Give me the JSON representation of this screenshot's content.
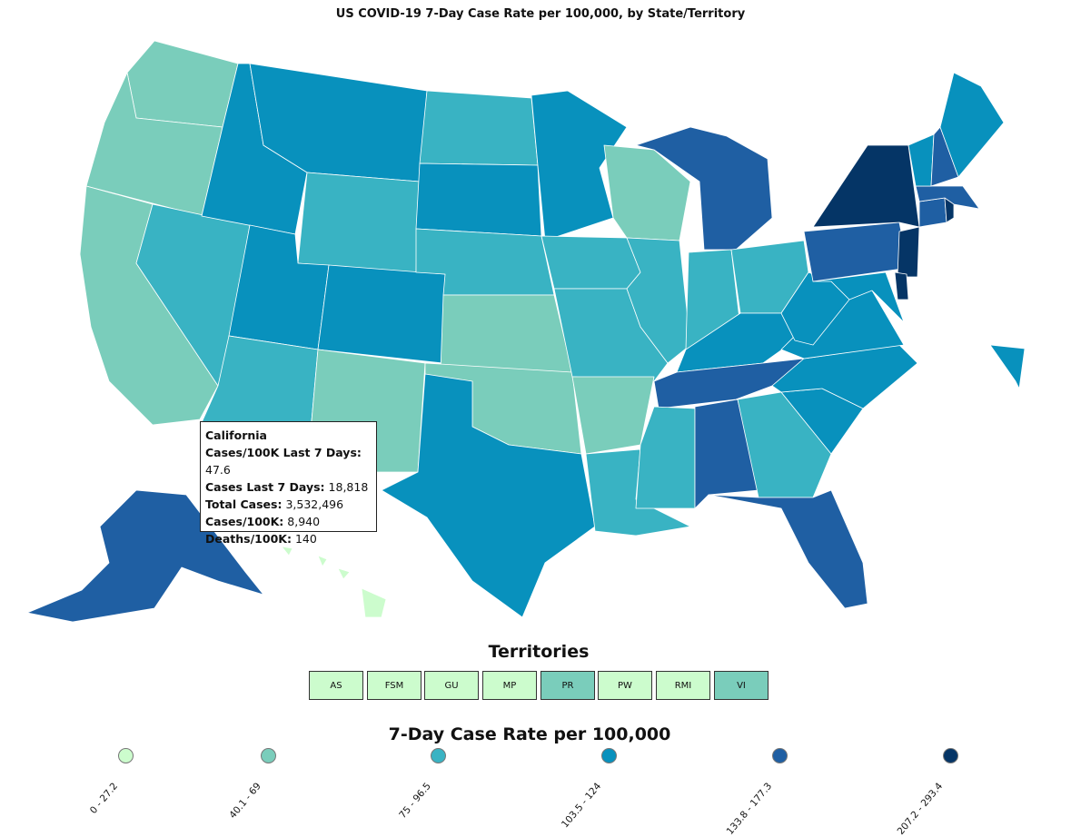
{
  "title": "US COVID-19 7-Day Case Rate per 100,000, by State/Territory",
  "legend": {
    "title": "7-Day Case Rate per 100,000",
    "bins": [
      {
        "label": "0 - 27.2",
        "color": "#ccfccd"
      },
      {
        "label": "40.1 - 69",
        "color": "#7acdbb"
      },
      {
        "label": "75 - 96.5",
        "color": "#39b3c3"
      },
      {
        "label": "103.5 - 124",
        "color": "#0891bd"
      },
      {
        "label": "133.8 - 177.3",
        "color": "#1f5fa3"
      },
      {
        "label": "207.2 - 293.4",
        "color": "#053566"
      }
    ]
  },
  "territories": {
    "title": "Territories",
    "items": [
      {
        "label": "AS",
        "bin": 0
      },
      {
        "label": "FSM",
        "bin": 0
      },
      {
        "label": "GU",
        "bin": 0
      },
      {
        "label": "MP",
        "bin": 0
      },
      {
        "label": "PR",
        "bin": 1
      },
      {
        "label": "PW",
        "bin": 0
      },
      {
        "label": "RMI",
        "bin": 0
      },
      {
        "label": "VI",
        "bin": 1
      }
    ]
  },
  "tooltip": {
    "state": "California",
    "rows": [
      {
        "label": "Cases/100K Last 7 Days:",
        "value": "47.6"
      },
      {
        "label": "Cases Last 7 Days:",
        "value": "18,818"
      },
      {
        "label": "Total Cases:",
        "value": "3,532,496"
      },
      {
        "label": "Cases/100K:",
        "value": "8,940"
      },
      {
        "label": "Deaths/100K:",
        "value": "140"
      }
    ]
  },
  "states": {
    "WA": 1,
    "OR": 1,
    "CA": 1,
    "NV": 2,
    "ID": 3,
    "MT": 3,
    "WY": 2,
    "UT": 3,
    "AZ": 2,
    "CO": 3,
    "NM": 1,
    "ND": 2,
    "SD": 3,
    "NE": 2,
    "KS": 1,
    "OK": 1,
    "TX": 3,
    "MN": 3,
    "IA": 2,
    "MO": 2,
    "AR": 1,
    "LA": 2,
    "WI": 1,
    "IL": 2,
    "MI": 4,
    "IN": 2,
    "OH": 2,
    "KY": 3,
    "TN": 4,
    "MS": 2,
    "AL": 4,
    "GA": 2,
    "FL": 4,
    "SC": 3,
    "NC": 3,
    "VA": 3,
    "WV": 3,
    "PA": 4,
    "NY": 5,
    "NJ": 5,
    "DE": 5,
    "MD": 3,
    "CT": 4,
    "RI": 5,
    "MA": 4,
    "VT": 3,
    "NH": 4,
    "ME": 3,
    "AK": 4,
    "HI": 0
  }
}
